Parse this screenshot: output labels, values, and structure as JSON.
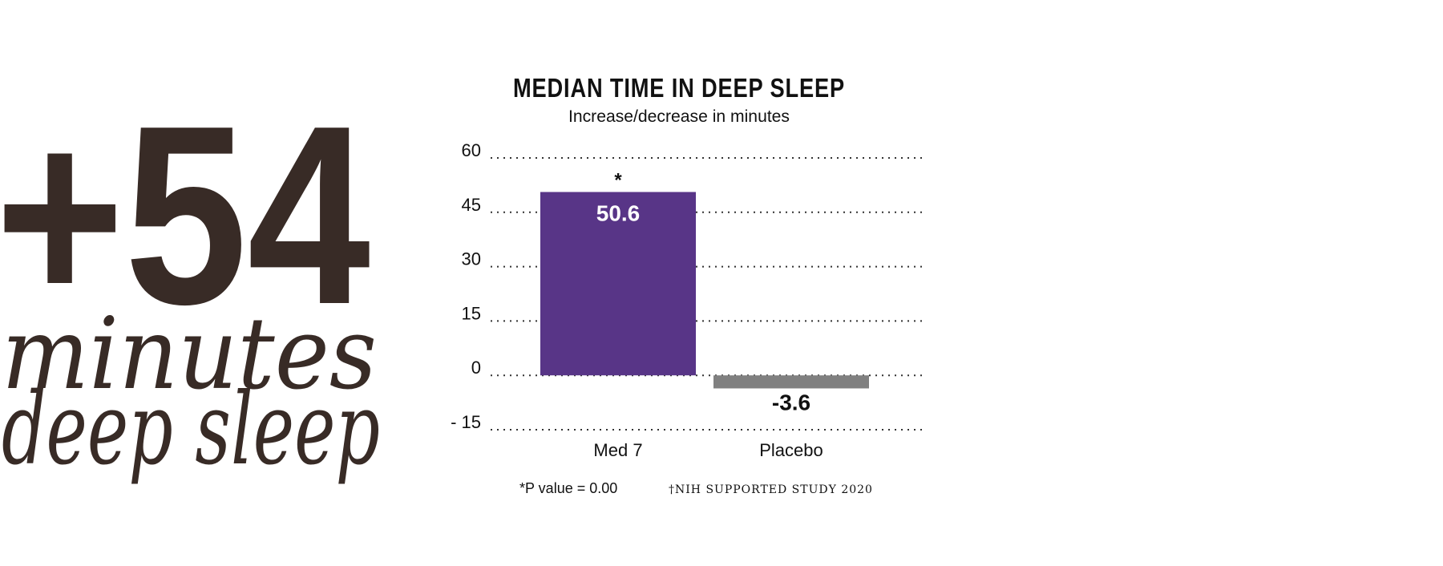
{
  "headline": {
    "big_number": "+54",
    "line1": "minutes",
    "line2": "deep sleep"
  },
  "chart_data": {
    "type": "bar",
    "title": "MEDIAN TIME IN DEEP SLEEP",
    "subtitle": "Increase/decrease in minutes",
    "categories": [
      "Med 7",
      "Placebo"
    ],
    "values": [
      50.6,
      -3.6
    ],
    "value_labels": [
      "50.6",
      "-3.6"
    ],
    "significance_marks": [
      "*",
      ""
    ],
    "bar_colors": [
      "#583587",
      "#808080"
    ],
    "ylim": [
      -15,
      60
    ],
    "yticks": [
      60,
      45,
      30,
      15,
      0,
      -15
    ],
    "ytick_labels": [
      "60",
      "45",
      "30",
      "15",
      "0",
      "- 15"
    ],
    "grid": "horizontal dotted",
    "xlabel": "",
    "ylabel": ""
  },
  "footnotes": {
    "p_value": "*P value = 0.00",
    "source": "†NIH SUPPORTED STUDY 2020"
  },
  "colors": {
    "headline": "#382b26",
    "text": "#111111",
    "grid": "#333333"
  }
}
